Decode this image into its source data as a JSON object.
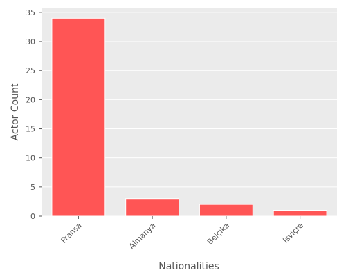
{
  "chart_data": {
    "type": "bar",
    "categories": [
      "Fransa",
      "Almanya",
      "Belçika",
      "İsviçre"
    ],
    "values": [
      34,
      3,
      2,
      1
    ],
    "xlabel": "Nationalities",
    "ylabel": "Actor Count",
    "ylim": [
      0,
      35.7
    ],
    "yticks": [
      0,
      5,
      10,
      15,
      20,
      25,
      30,
      35
    ],
    "grid": true,
    "legend": "none",
    "colors": {
      "bar": "#ff5555",
      "bar_edge": "#ffffff",
      "plot_background": "#ebebeb",
      "grid": "#ffffff",
      "text": "#555555"
    }
  }
}
